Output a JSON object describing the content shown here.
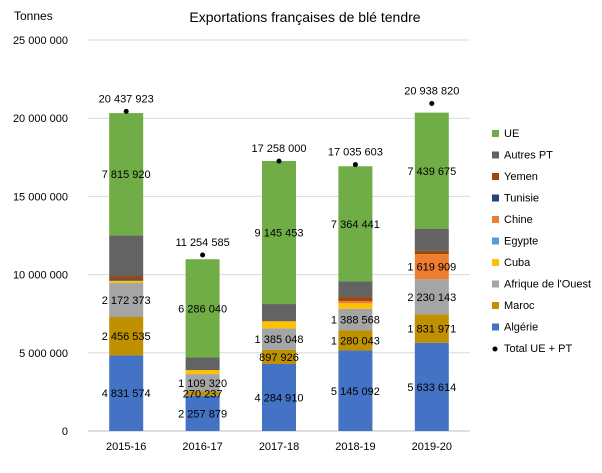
{
  "chart_data": {
    "type": "bar",
    "stacked": true,
    "title": "Exportations françaises de blé tendre",
    "ylabel": "Tonnes",
    "xlabel": "",
    "ylim": [
      0,
      25000000
    ],
    "yticks": [
      0,
      5000000,
      10000000,
      15000000,
      20000000,
      25000000
    ],
    "ytick_labels": [
      "0",
      "5 000 000",
      "10 000 000",
      "15 000 000",
      "20 000 000",
      "25 000 000"
    ],
    "grid": true,
    "legend_position": "right",
    "categories": [
      "2015-16",
      "2016-17",
      "2017-18",
      "2018-19",
      "2019-20"
    ],
    "series": [
      {
        "name": "Algérie",
        "color": "#4472c4",
        "values": [
          4831574,
          2257879,
          4284910,
          5145092,
          5633614
        ],
        "labels": [
          "4 831 574",
          "2 257 879",
          "4 284 910",
          "5 145 092",
          "5 633 614"
        ]
      },
      {
        "name": "Maroc",
        "color": "#bf9000",
        "values": [
          2456535,
          270237,
          897926,
          1280043,
          1831971
        ],
        "labels": [
          "2 456 535",
          "270 237",
          "897 926",
          "1 280 043",
          "1 831 971"
        ]
      },
      {
        "name": "Afrique de l'Ouest",
        "color": "#a5a5a5",
        "values": [
          2172373,
          1109320,
          1385048,
          1388568,
          2230143
        ],
        "labels": [
          "2 172 373",
          "1 109 320",
          "1 385 048",
          "1 388 568",
          "2 230 143"
        ]
      },
      {
        "name": "Cuba",
        "color": "#ffc000",
        "values": [
          150000,
          260000,
          450000,
          350000,
          0
        ],
        "labels": [
          "",
          "",
          "",
          "",
          ""
        ]
      },
      {
        "name": "Egypte",
        "color": "#5b9bd5",
        "values": [
          0,
          0,
          0,
          0,
          0
        ],
        "labels": [
          "",
          "",
          "",
          "",
          ""
        ]
      },
      {
        "name": "Chine",
        "color": "#ed7d31",
        "values": [
          0,
          0,
          0,
          150000,
          1619909
        ],
        "labels": [
          "",
          "",
          "",
          "",
          "1 619 909"
        ]
      },
      {
        "name": "Tunisie",
        "color": "#264478",
        "values": [
          100000,
          0,
          0,
          0,
          0
        ],
        "labels": [
          "",
          "",
          "",
          "",
          ""
        ]
      },
      {
        "name": "Yemen",
        "color": "#9e480e",
        "values": [
          200000,
          0,
          0,
          250000,
          200000
        ],
        "labels": [
          "",
          "",
          "",
          "",
          ""
        ]
      },
      {
        "name": "Autres PT",
        "color": "#636363",
        "values": [
          2600000,
          800000,
          1100000,
          1000000,
          1400000
        ],
        "labels": [
          "",
          "",
          "",
          "",
          ""
        ]
      },
      {
        "name": "UE",
        "color": "#70ad47",
        "values": [
          7815920,
          6286040,
          9145453,
          7364441,
          7439675
        ],
        "labels": [
          "7 815 920",
          "6 286 040",
          "9 145 453",
          "7 364 441",
          "7 439 675"
        ]
      }
    ],
    "totals": {
      "name": "Total UE + PT",
      "values": [
        20437923,
        11254585,
        17258000,
        17035603,
        20938820
      ],
      "labels": [
        "20 437 923",
        "11 254 585",
        "17 258 000",
        "17 035 603",
        "20 938 820"
      ]
    }
  }
}
